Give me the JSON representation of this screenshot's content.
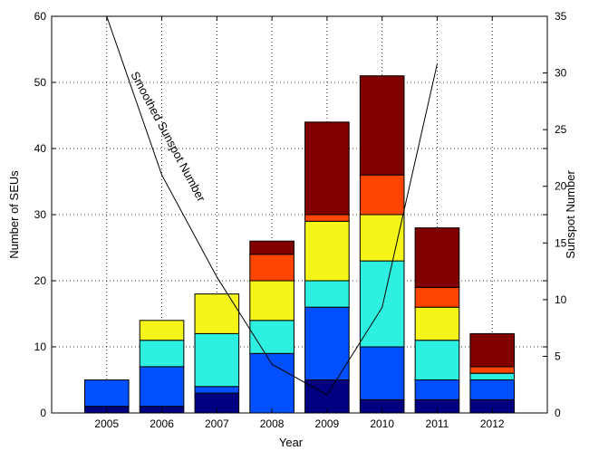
{
  "chart_data": {
    "type": "bar",
    "stacked": true,
    "categories": [
      "2005",
      "2006",
      "2007",
      "2008",
      "2009",
      "2010",
      "2011",
      "2012"
    ],
    "series": [
      {
        "color": "#000080",
        "values": [
          1,
          1,
          3,
          0,
          5,
          2,
          2,
          2
        ]
      },
      {
        "color": "#0050ff",
        "values": [
          4,
          6,
          1,
          9,
          11,
          8,
          3,
          3
        ]
      },
      {
        "color": "#2ef0e0",
        "values": [
          0,
          4,
          8,
          5,
          4,
          13,
          6,
          1
        ]
      },
      {
        "color": "#f5f519",
        "values": [
          0,
          3,
          6,
          6,
          9,
          7,
          5,
          0
        ]
      },
      {
        "color": "#ff4500",
        "values": [
          0,
          0,
          0,
          4,
          1,
          6,
          3,
          1
        ]
      },
      {
        "color": "#800000",
        "values": [
          0,
          0,
          0,
          2,
          14,
          15,
          9,
          5
        ]
      }
    ],
    "xlabel": "Year",
    "ylabel": "Number of SEUs",
    "ylim": [
      0,
      60
    ],
    "yticks": [
      0,
      10,
      20,
      30,
      40,
      50,
      60
    ],
    "y2label": "Sunspot Number",
    "y2lim": [
      0,
      35
    ],
    "y2ticks": [
      0,
      5,
      10,
      15,
      20,
      25,
      30,
      35
    ],
    "sunspot_line": {
      "label": "Smoothed Sunspot Number",
      "x": [
        2005,
        2006,
        2007,
        2008,
        2009,
        2010,
        2011
      ],
      "y": [
        35,
        21,
        12,
        4.3,
        1.6,
        9.3,
        30.8
      ]
    },
    "grid": "dotted"
  }
}
